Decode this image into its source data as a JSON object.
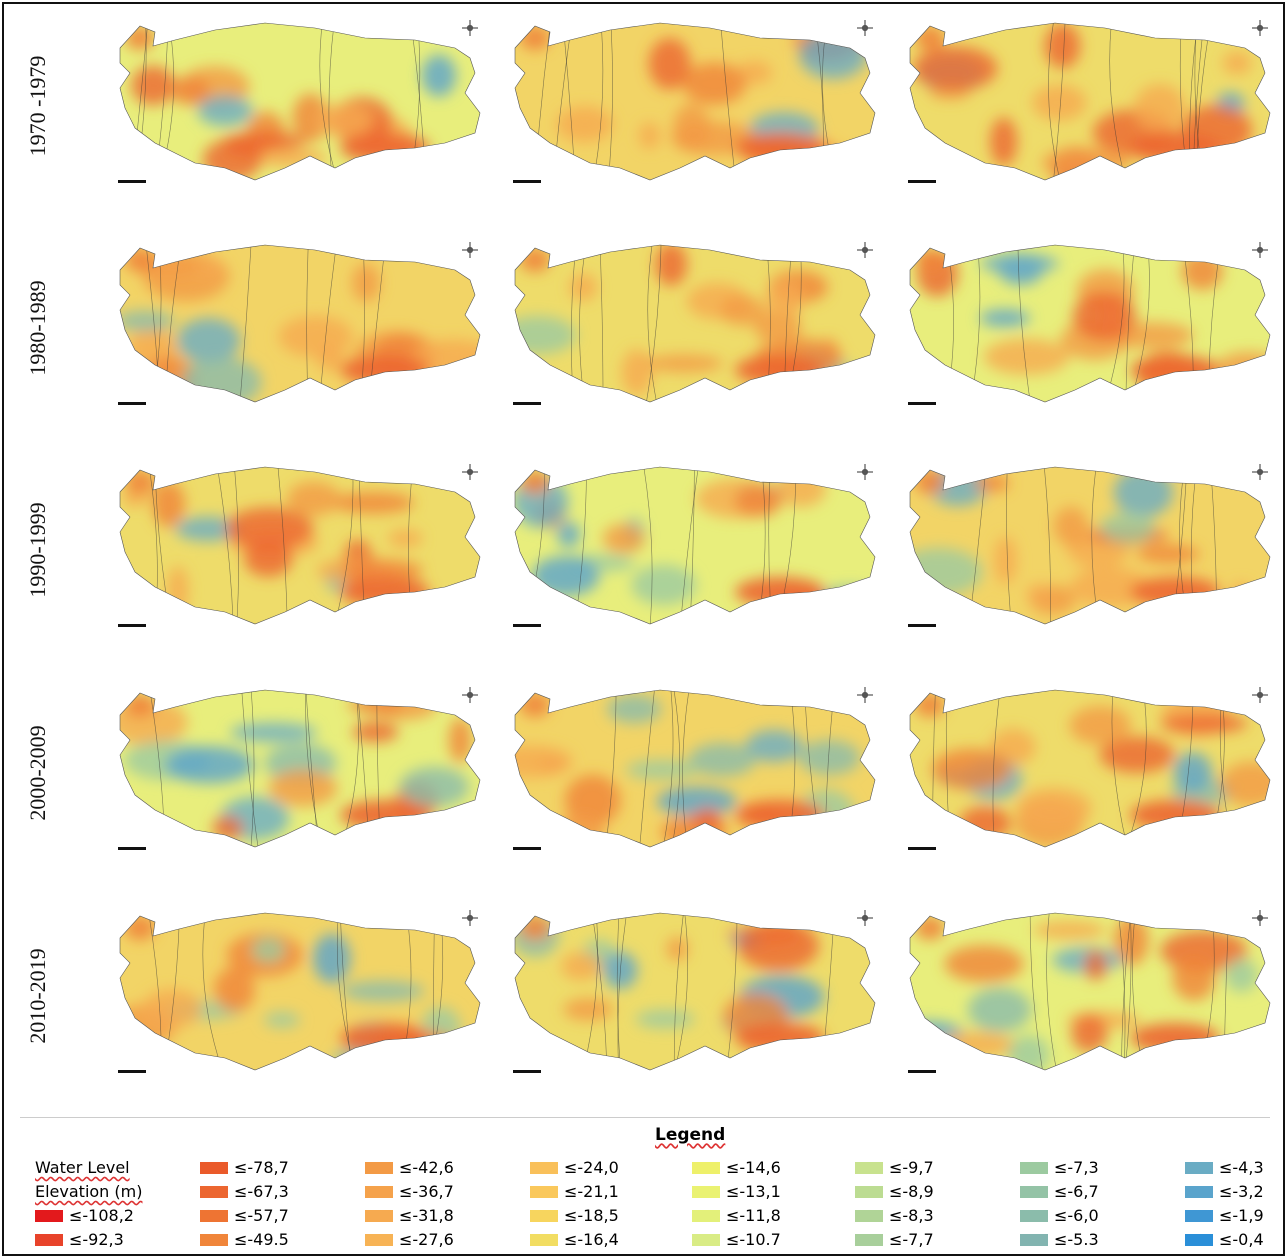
{
  "row_labels": [
    "1970 -1979",
    "1980-1989",
    "1990-1999",
    "2000-2009",
    "2010-2019"
  ],
  "legend": {
    "title": "Legend",
    "heading": "Water Level Elevation (m)",
    "items": [
      {
        "label": "≤-108,2",
        "color": "#e3191c"
      },
      {
        "label": "≤-92,3",
        "color": "#e8432a"
      },
      {
        "label": "≤-78,7",
        "color": "#ea5a2a"
      },
      {
        "label": "≤-67,3",
        "color": "#ec6630"
      },
      {
        "label": "≤-57,7",
        "color": "#ee7433"
      },
      {
        "label": "≤-49.5",
        "color": "#f0853a"
      },
      {
        "label": "≤-42,6",
        "color": "#f39a45"
      },
      {
        "label": "≤-36,7",
        "color": "#f5a24b"
      },
      {
        "label": "≤-31,8",
        "color": "#f6aa50"
      },
      {
        "label": "≤-27,6",
        "color": "#f7b355"
      },
      {
        "label": "≤-24,0",
        "color": "#f9c05a"
      },
      {
        "label": "≤-21,1",
        "color": "#fac85c"
      },
      {
        "label": "≤-18,5",
        "color": "#f7d55e"
      },
      {
        "label": "≤-16,4",
        "color": "#f2dd62"
      },
      {
        "label": "≤-14,6",
        "color": "#eef06a"
      },
      {
        "label": "≤-13,1",
        "color": "#eaf272"
      },
      {
        "label": "≤-11,8",
        "color": "#e3f07a"
      },
      {
        "label": "≤-10.7",
        "color": "#d9ec85"
      },
      {
        "label": "≤-9,7",
        "color": "#c8e28e"
      },
      {
        "label": "≤-8,9",
        "color": "#bcdc92"
      },
      {
        "label": "≤-8,3",
        "color": "#b0d497"
      },
      {
        "label": "≤-7,7",
        "color": "#a8cf9b"
      },
      {
        "label": "≤-7,3",
        "color": "#9ccaa0"
      },
      {
        "label": "≤-6,7",
        "color": "#94c3a6"
      },
      {
        "label": "≤-6,0",
        "color": "#8bbcab"
      },
      {
        "label": "≤-5.3",
        "color": "#82b4b0"
      },
      {
        "label": "≤-4,3",
        "color": "#6aacc4"
      },
      {
        "label": "≤-3,2",
        "color": "#5aa4cc"
      },
      {
        "label": "≤-1,9",
        "color": "#3f97d4"
      },
      {
        "label": "≤-0,4",
        "color": "#2a8fd8"
      }
    ]
  }
}
